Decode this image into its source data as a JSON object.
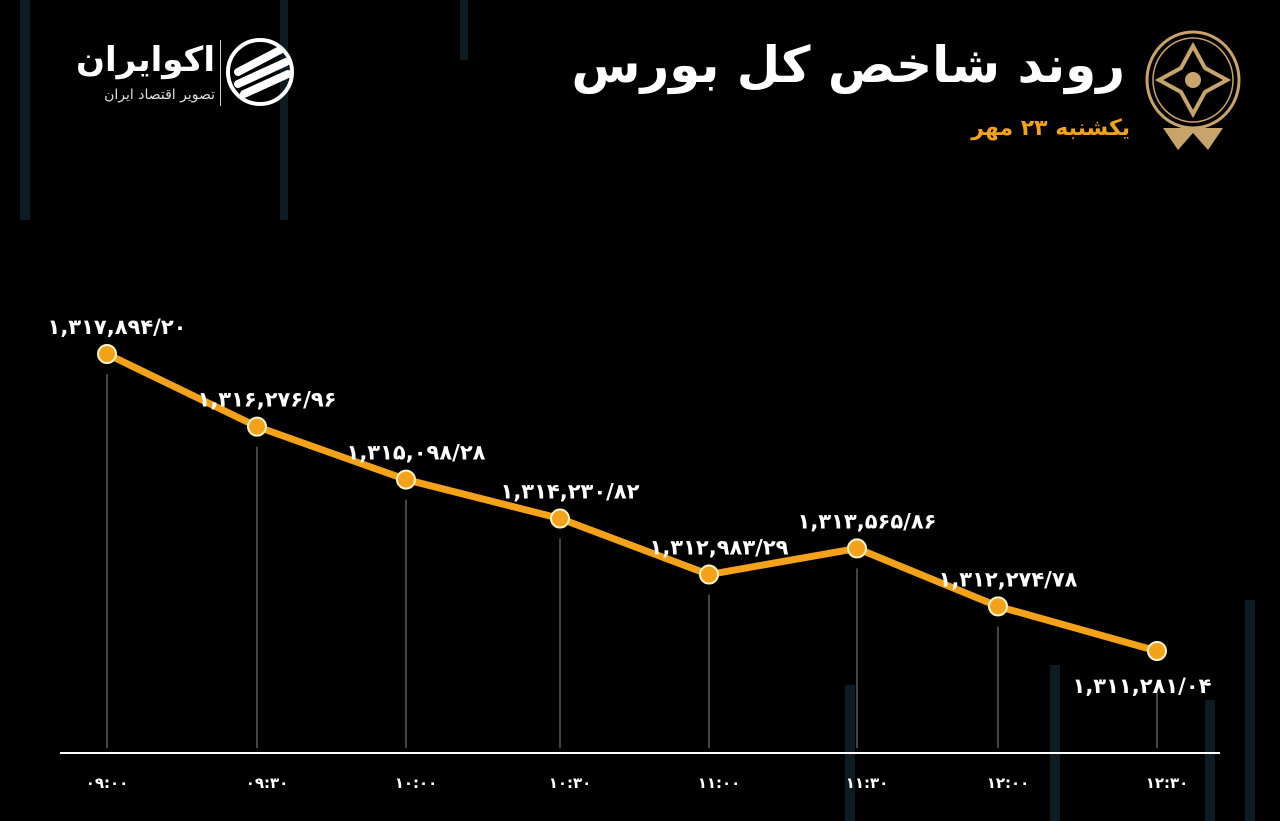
{
  "header": {
    "title": "روند شاخص کل بورس",
    "subtitle": "یکشنبه ۲۳ مهر"
  },
  "logo": {
    "name": "اکوایران",
    "tagline": "تصویر اقتصاد ایران"
  },
  "colors": {
    "line": "#f5a21b",
    "background": "#000000",
    "text": "#ffffff"
  },
  "chart_data": {
    "type": "line",
    "categories": [
      "۰۹:۰۰",
      "۰۹:۳۰",
      "۱۰:۰۰",
      "۱۰:۳۰",
      "۱۱:۰۰",
      "۱۱:۳۰",
      "۱۲:۰۰",
      "۱۲:۳۰"
    ],
    "values": [
      1317894.2,
      1316276.96,
      1315098.28,
      1314230.82,
      1312983.29,
      1313565.86,
      1312274.78,
      1311281.04
    ],
    "labels": [
      "۱,۳۱۷,۸۹۴/۲۰",
      "۱,۳۱۶,۲۷۶/۹۶",
      "۱,۳۱۵,۰۹۸/۲۸",
      "۱,۳۱۴,۲۳۰/۸۲",
      "۱,۳۱۲,۹۸۳/۲۹",
      "۱,۳۱۳,۵۶۵/۸۶",
      "۱,۳۱۲,۲۷۴/۷۸",
      "۱,۳۱۱,۲۸۱/۰۴"
    ],
    "title": "روند شاخص کل بورس",
    "xlabel": "",
    "ylabel": "",
    "grid": false
  }
}
